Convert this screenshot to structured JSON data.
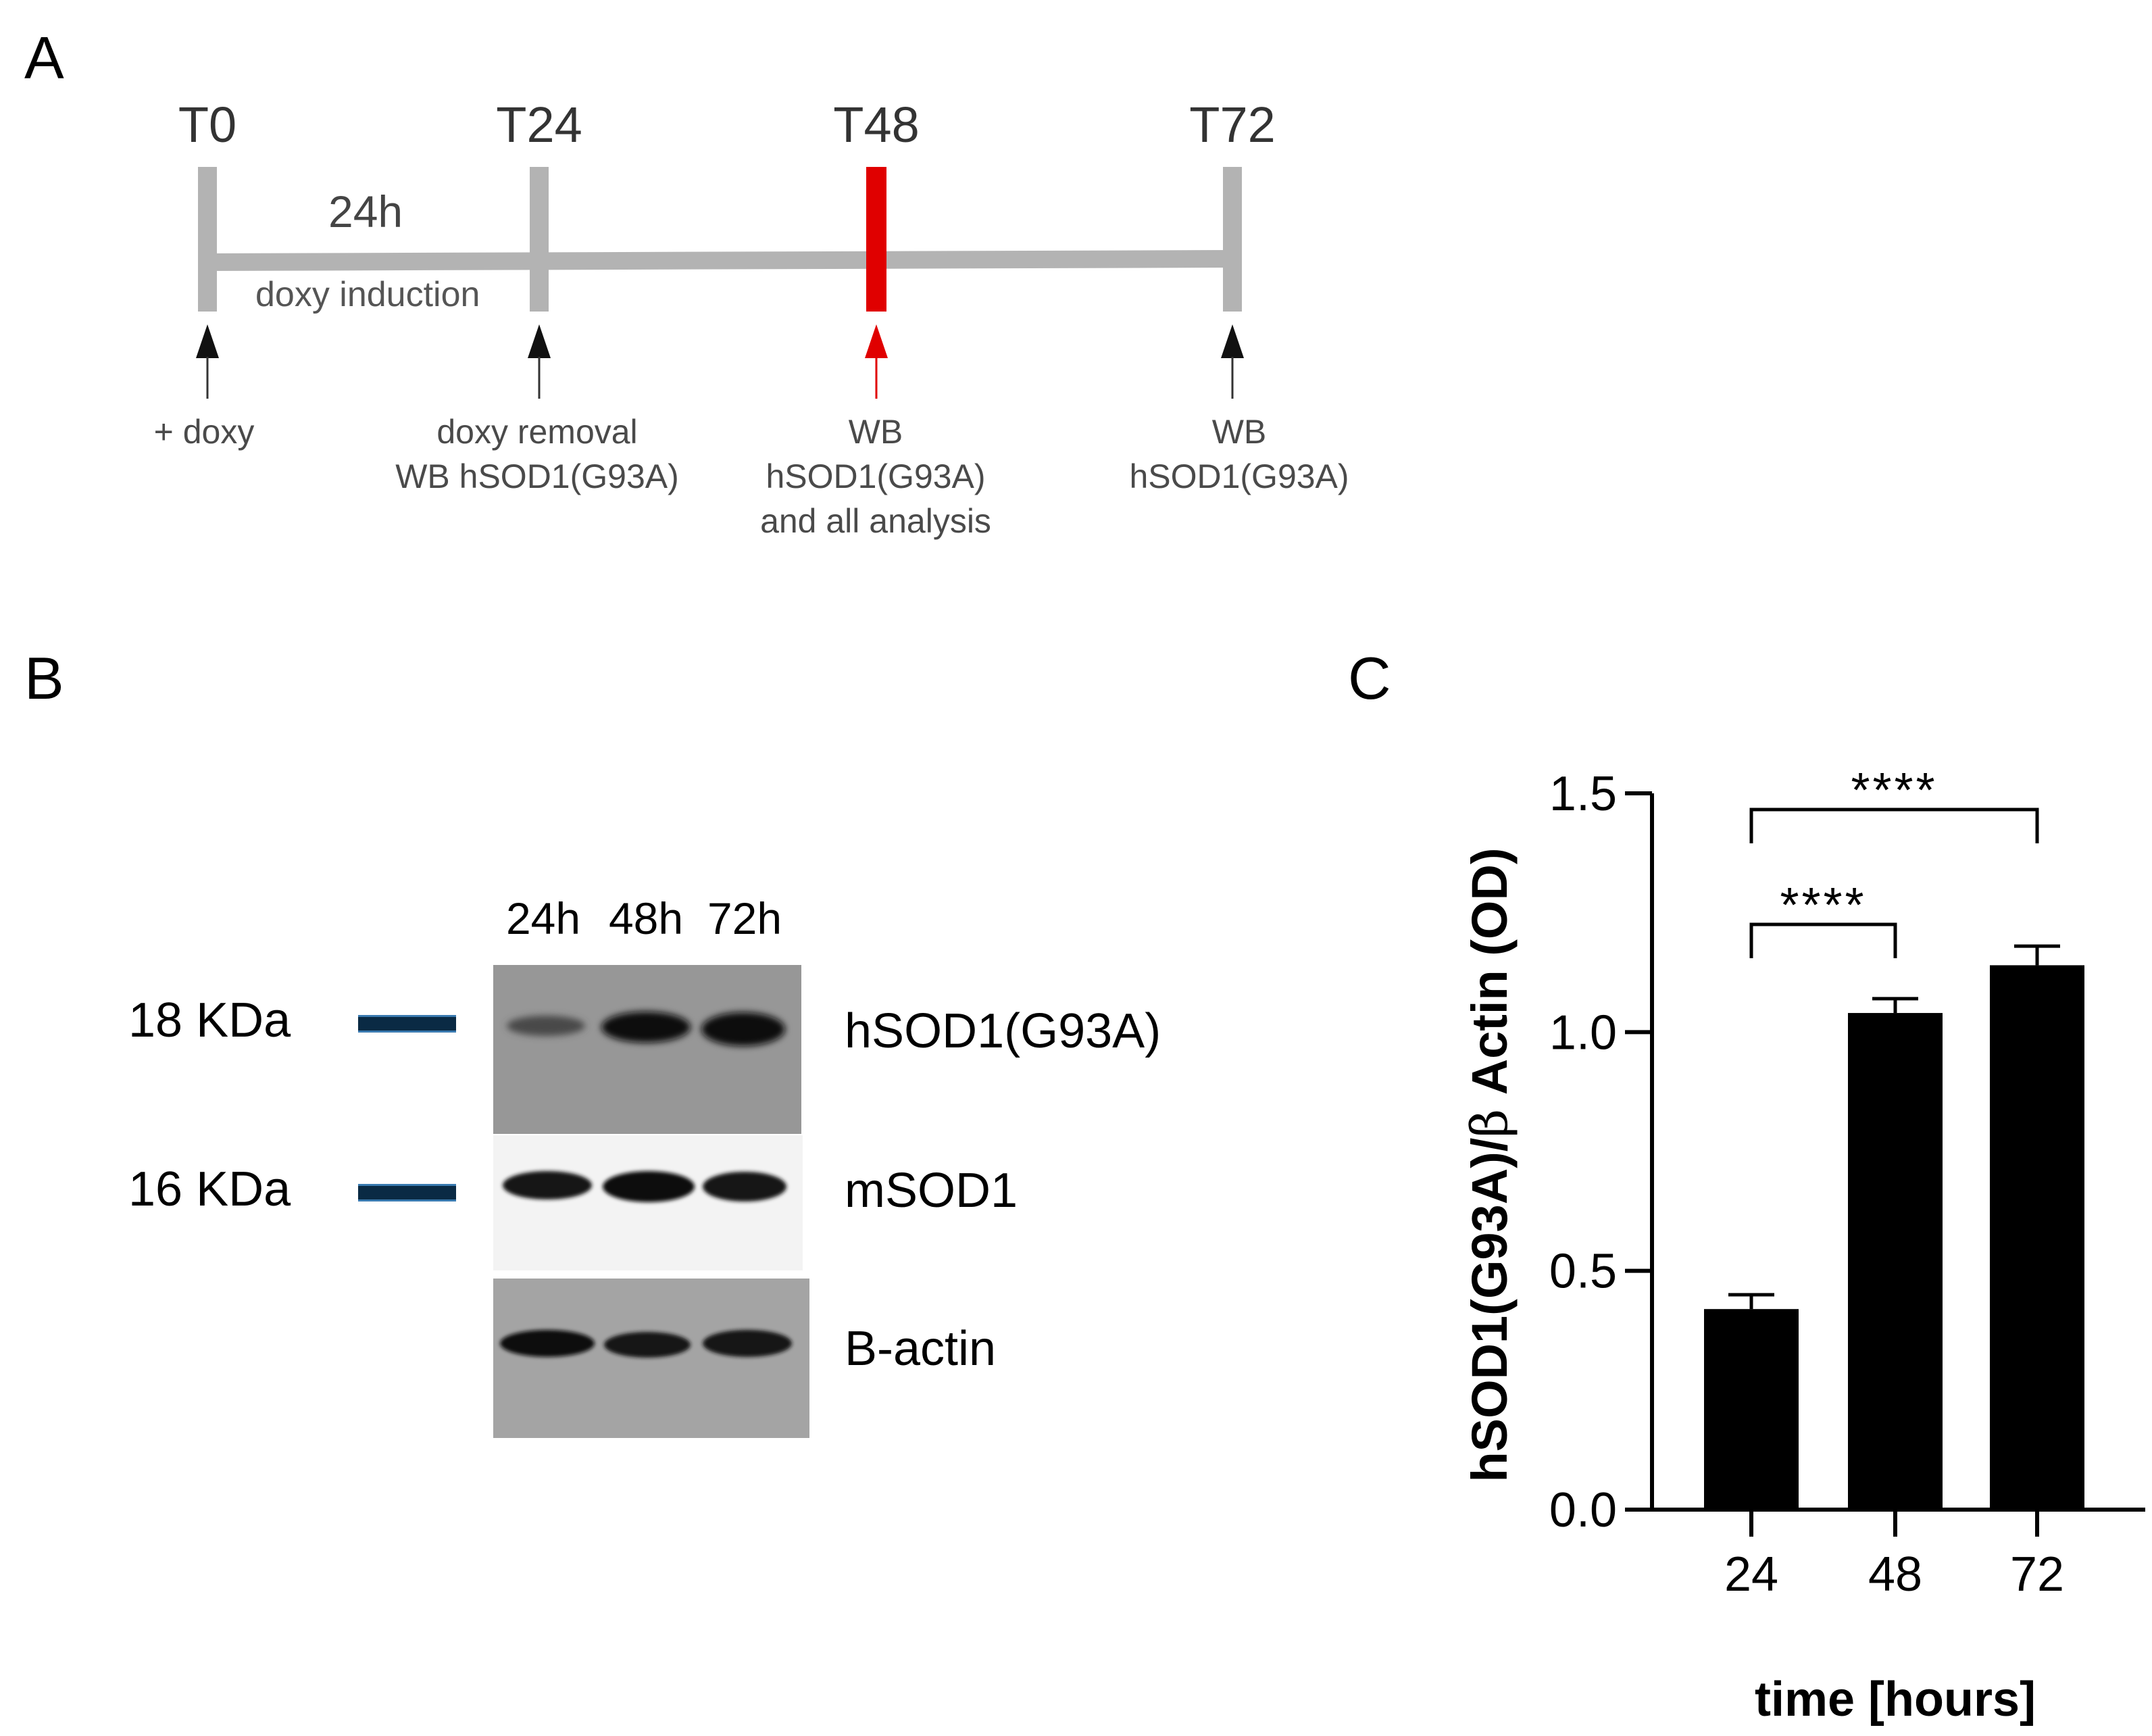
{
  "panels": {
    "a": "A",
    "b": "B",
    "c": "C"
  },
  "timeline": {
    "points": [
      {
        "label": "T0",
        "note": [
          "+ doxy"
        ]
      },
      {
        "label": "T24",
        "note": [
          "doxy removal",
          "WB hSOD1(G93A)"
        ]
      },
      {
        "label": "T48",
        "note": [
          "WB",
          "hSOD1(G93A)",
          "and all analysis"
        ]
      },
      {
        "label": "T72",
        "note": [
          "WB",
          "hSOD1(G93A)"
        ]
      }
    ],
    "duration": "24h",
    "induction": "doxy induction",
    "highlight": "T48",
    "colors": {
      "bar": "#b3b3b3",
      "highlight": "#e00000"
    }
  },
  "blot": {
    "lanes": [
      "24h",
      "48h",
      "72h"
    ],
    "markers": [
      {
        "label": "18 KDa",
        "row": "hSOD1(G93A)"
      },
      {
        "label": "16 KDa",
        "row": "mSOD1"
      }
    ],
    "rows": [
      "hSOD1(G93A)",
      "mSOD1",
      "B-actin"
    ],
    "marker_color": "#0a2a44"
  },
  "chart_data": {
    "type": "bar",
    "categories": [
      "24",
      "48",
      "72"
    ],
    "values": [
      0.42,
      1.04,
      1.14
    ],
    "errors": [
      0.03,
      0.03,
      0.04
    ],
    "ylabel_main": "hSOD1(G93A)/",
    "ylabel_greek": "β",
    "ylabel_rest": " Actin (OD)",
    "xlabel": "time [hours]",
    "ylim": [
      0,
      1.5
    ],
    "yticks": [
      "0.0",
      "0.5",
      "1.0",
      "1.5"
    ],
    "significance": [
      {
        "from": "24",
        "to": "48",
        "label": "****"
      },
      {
        "from": "24",
        "to": "72",
        "label": "****"
      }
    ],
    "bar_color": "#000000"
  }
}
